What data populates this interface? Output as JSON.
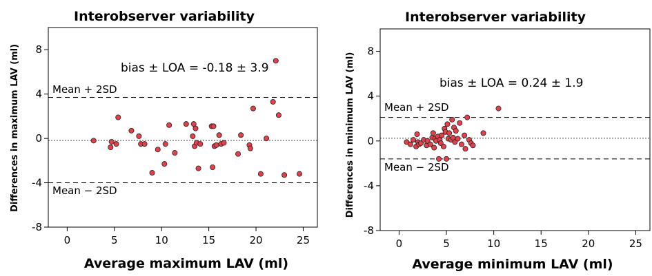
{
  "chart_data": [
    {
      "type": "scatter",
      "title": "Interobserver variability",
      "xlabel": "Average maximum LAV (ml)",
      "ylabel": "Differences in maximum LAV (ml)",
      "xlim": [
        -2,
        26.5
      ],
      "ylim": [
        -8,
        10
      ],
      "xticks": [
        0,
        5,
        10,
        15,
        20,
        25
      ],
      "yticks": [
        -8,
        -4,
        0,
        4,
        8
      ],
      "xtick_labels": [
        "0",
        "5",
        "10",
        "15",
        "20",
        "25"
      ],
      "ytick_labels": [
        "-8",
        "-4",
        "0",
        "4",
        "8"
      ],
      "bias_label": "bias ± LOA = -0.18 ± 3.9",
      "mean_line": -0.18,
      "upper_loa": 3.7,
      "lower_loa": -4.0,
      "upper_label": "Mean + 2SD",
      "lower_label": "Mean − 2SD",
      "point_color": "#e2404a",
      "x": [
        2.8,
        4.6,
        4.7,
        5.2,
        5.4,
        6.8,
        7.6,
        7.8,
        8.2,
        9.0,
        9.6,
        10.3,
        10.4,
        10.8,
        11.4,
        12.6,
        13.3,
        13.4,
        13.5,
        13.6,
        13.7,
        13.9,
        14.1,
        15.3,
        15.4,
        15.5,
        15.6,
        15.8,
        16.1,
        16.3,
        16.6,
        18.1,
        18.4,
        19.3,
        19.4,
        19.7,
        20.5,
        21.1,
        21.8,
        22.1,
        22.4,
        23.0,
        24.6
      ],
      "y": [
        -0.2,
        -0.8,
        -0.3,
        -0.5,
        1.9,
        0.7,
        0.2,
        -0.5,
        -0.5,
        -3.1,
        -1.0,
        -2.3,
        -0.5,
        1.2,
        -1.3,
        1.3,
        0.2,
        1.3,
        -0.7,
        0.9,
        -0.4,
        -2.7,
        -0.5,
        1.1,
        -2.6,
        1.1,
        -0.7,
        -0.6,
        0.3,
        -0.5,
        -0.4,
        -1.4,
        0.3,
        -0.6,
        -0.9,
        2.7,
        -3.2,
        0.0,
        3.3,
        7.0,
        2.1,
        -3.3,
        -3.2
      ]
    },
    {
      "type": "scatter",
      "title": "Interobserver variability",
      "xlabel": "Average minimum LAV (ml)",
      "ylabel": "Differences in minimum LAV (ml)",
      "xlim": [
        -2,
        26.5
      ],
      "ylim": [
        -8,
        10
      ],
      "xticks": [
        0,
        5,
        10,
        15,
        20,
        25
      ],
      "yticks": [
        -8,
        -4,
        0,
        4,
        8
      ],
      "xtick_labels": [
        "0",
        "5",
        "10",
        "15",
        "20",
        "25"
      ],
      "ytick_labels": [
        "-8",
        "-4",
        "0",
        "4",
        "8"
      ],
      "bias_label": "bias ± LOA = 0.24 ± 1.9",
      "mean_line": 0.24,
      "upper_loa": 2.1,
      "lower_loa": -1.6,
      "upper_label": "Mean + 2SD",
      "lower_label": "Mean − 2SD",
      "point_color": "#e2404a",
      "x": [
        0.8,
        1.2,
        1.5,
        1.8,
        1.9,
        2.0,
        2.1,
        2.3,
        2.6,
        2.9,
        3.0,
        3.3,
        3.5,
        3.6,
        3.7,
        3.8,
        3.9,
        4.1,
        4.2,
        4.3,
        4.4,
        4.5,
        4.7,
        4.8,
        4.9,
        5.0,
        5.1,
        5.2,
        5.3,
        5.5,
        5.6,
        5.7,
        5.8,
        5.9,
        6.0,
        6.2,
        6.4,
        6.6,
        6.9,
        7.0,
        7.2,
        7.4,
        7.6,
        7.8,
        8.9,
        10.5
      ],
      "y": [
        -0.1,
        -0.3,
        0.1,
        -0.5,
        0.6,
        -0.1,
        -0.3,
        -0.2,
        0.1,
        -0.4,
        0.0,
        -0.3,
        0.3,
        0.7,
        -0.6,
        0.2,
        0.0,
        0.4,
        -1.6,
        0.1,
        -0.2,
        0.5,
        -0.5,
        1.1,
        0.8,
        -1.6,
        1.5,
        0.2,
        0.7,
        0.1,
        1.9,
        0.3,
        1.2,
        -0.1,
        0.9,
        0.2,
        1.6,
        -0.3,
        0.5,
        -0.7,
        2.1,
        0.1,
        -0.2,
        -0.4,
        0.7,
        2.9
      ]
    }
  ]
}
